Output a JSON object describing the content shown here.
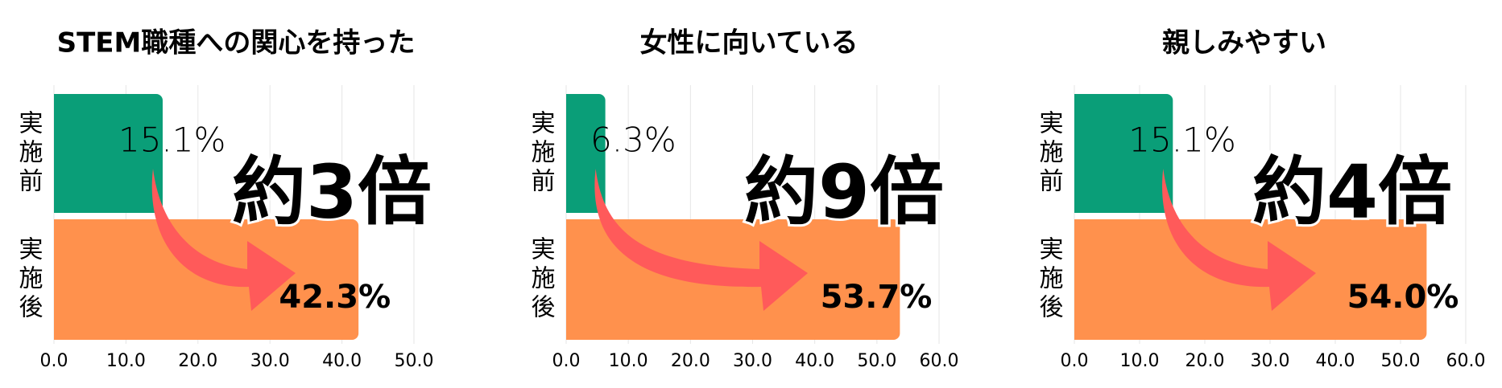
{
  "chart_data": [
    {
      "type": "bar",
      "orientation": "horizontal",
      "title": "STEM職種への関心を持った",
      "categories": [
        "実施前",
        "実施後"
      ],
      "values": [
        15.1,
        42.3
      ],
      "value_labels": [
        "15.1%",
        "42.3%"
      ],
      "colors": [
        "#0a9e78",
        "#ff914d"
      ],
      "annotation": "約3倍",
      "xlim": [
        0,
        50
      ],
      "xticks": [
        {
          "value": 0,
          "label": "0.0"
        },
        {
          "value": 10,
          "label": "10.0"
        },
        {
          "value": 20,
          "label": "20.0"
        },
        {
          "value": 30,
          "label": "30.0"
        },
        {
          "value": 40,
          "label": "40.0"
        },
        {
          "value": 50,
          "label": "50.0"
        }
      ],
      "grid": true
    },
    {
      "type": "bar",
      "orientation": "horizontal",
      "title": "女性に向いている",
      "categories": [
        "実施前",
        "実施後"
      ],
      "values": [
        6.3,
        53.7
      ],
      "value_labels": [
        "6.3%",
        "53.7%"
      ],
      "colors": [
        "#0a9e78",
        "#ff914d"
      ],
      "annotation": "約9倍",
      "xlim": [
        0,
        60
      ],
      "xticks": [
        {
          "value": 0,
          "label": "0.0"
        },
        {
          "value": 10,
          "label": "10.0"
        },
        {
          "value": 20,
          "label": "20.0"
        },
        {
          "value": 30,
          "label": "30.0"
        },
        {
          "value": 40,
          "label": "40.0"
        },
        {
          "value": 50,
          "label": "50.0"
        },
        {
          "value": 60,
          "label": "60.0"
        }
      ],
      "grid": true
    },
    {
      "type": "bar",
      "orientation": "horizontal",
      "title": "親しみやすい",
      "categories": [
        "実施前",
        "実施後"
      ],
      "values": [
        15.1,
        54.0
      ],
      "value_labels": [
        "15.1%",
        "54.0%"
      ],
      "colors": [
        "#0a9e78",
        "#ff914d"
      ],
      "annotation": "約4倍",
      "xlim": [
        0,
        60
      ],
      "xticks": [
        {
          "value": 0,
          "label": "0.0"
        },
        {
          "value": 10,
          "label": "10.0"
        },
        {
          "value": 20,
          "label": "20.0"
        },
        {
          "value": 30,
          "label": "30.0"
        },
        {
          "value": 40,
          "label": "40.0"
        },
        {
          "value": 50,
          "label": "50.0"
        },
        {
          "value": 60,
          "label": "60.0"
        }
      ],
      "grid": true
    }
  ]
}
